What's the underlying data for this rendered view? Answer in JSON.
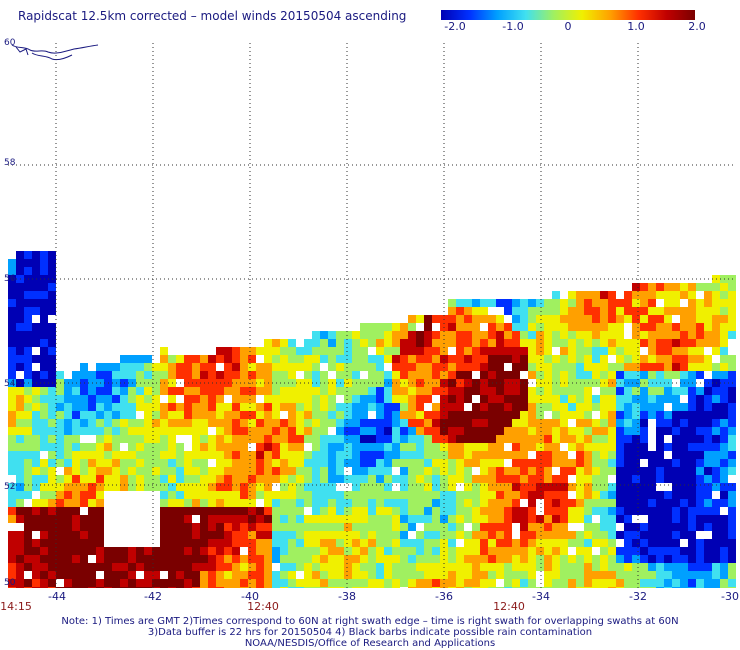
{
  "title": "Rapidscat 12.5km corrected – model winds 20150504 ascending",
  "colorbar": {
    "ticks": [
      "-2.0",
      "-1.0",
      "0",
      "1.0",
      "2.0"
    ],
    "values": [
      -2.0,
      -1.0,
      0,
      1.0,
      2.0
    ],
    "min": -2.0,
    "max": 2.0,
    "colors": [
      "#0000b4",
      "#0030ff",
      "#00a0ff",
      "#40e0f0",
      "#a0f060",
      "#f0f000",
      "#ffa000",
      "#ff3000",
      "#c00000",
      "#7a0000"
    ]
  },
  "map": {
    "lon_range": [
      -45,
      -30
    ],
    "lat_range": [
      50,
      60
    ],
    "lon_ticks": [
      "-44",
      "-42",
      "-40",
      "-38",
      "-36",
      "-34",
      "-32",
      "-30"
    ],
    "lat_ticks": [
      "60",
      "58",
      "56",
      "54",
      "52",
      "50"
    ],
    "times": [
      {
        "label": "14:15",
        "lon": -45
      },
      {
        "label": "12:40",
        "lon": -40
      },
      {
        "label": "12:40",
        "lon": -35
      }
    ],
    "gridlines": "dotted"
  },
  "notes": {
    "line1": "Note: 1) Times are GMT 2)Times correspond to 60N at right swath edge – time is right swath for overlapping swaths at 60N",
    "line2": "3)Data buffer is 22 hrs for 20150504 4) Black barbs indicate possible rain contamination",
    "line3": "NOAA/NESDIS/Office of Research and Applications"
  }
}
